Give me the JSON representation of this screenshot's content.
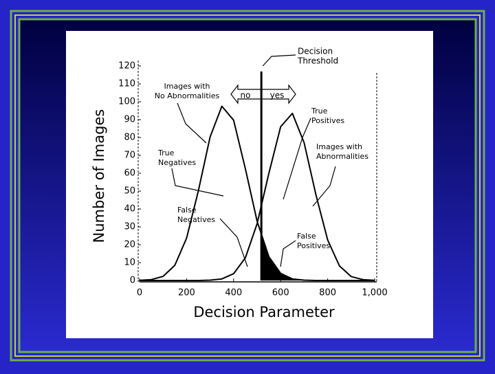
{
  "chart_data": {
    "type": "line",
    "ylabel": "Number of Images",
    "xlabel": "Decision Parameter",
    "x": [
      0,
      50,
      100,
      150,
      200,
      250,
      300,
      350,
      400,
      450,
      500,
      550,
      600,
      650,
      700,
      750,
      800,
      850,
      900,
      950,
      1000
    ],
    "series": [
      {
        "color": "#000000",
        "values": [
          0.1,
          0.5,
          2.3,
          8.5,
          23.7,
          50.1,
          80.3,
          97.5,
          89.7,
          62.5,
          33.1,
          13.3,
          4.0,
          0.9,
          0.2,
          0,
          0,
          0,
          0,
          0,
          0
        ]
      },
      {
        "color": "#000000",
        "values": [
          0,
          0,
          0,
          0,
          0,
          0,
          0.2,
          0.9,
          3.8,
          12.7,
          31.8,
          60,
          86,
          93.5,
          77,
          48,
          22.7,
          8.2,
          2.2,
          0.5,
          0.1
        ]
      }
    ],
    "threshold": 518,
    "xlim": [
      0,
      1000
    ],
    "ylim": [
      0,
      120
    ],
    "xticks": [
      0,
      200,
      400,
      600,
      800,
      {
        "value": 1000,
        "label": "1,000"
      }
    ],
    "yticks": [
      0,
      10,
      20,
      30,
      40,
      50,
      60,
      70,
      80,
      90,
      100,
      110,
      120
    ],
    "annotations": [
      {
        "lines": [
          "Decision",
          "Threshold"
        ]
      },
      {
        "lines": [
          "no"
        ]
      },
      {
        "lines": [
          "yes"
        ]
      },
      {
        "lines": [
          "Images with",
          "No Abnormalities"
        ]
      },
      {
        "lines": [
          "True",
          "Negatives"
        ]
      },
      {
        "lines": [
          "False",
          "Negatives"
        ]
      },
      {
        "lines": [
          "True",
          "Positives"
        ]
      },
      {
        "lines": [
          "Images with",
          "Abnormalities"
        ]
      },
      {
        "lines": [
          "False",
          "Positives"
        ]
      }
    ]
  }
}
